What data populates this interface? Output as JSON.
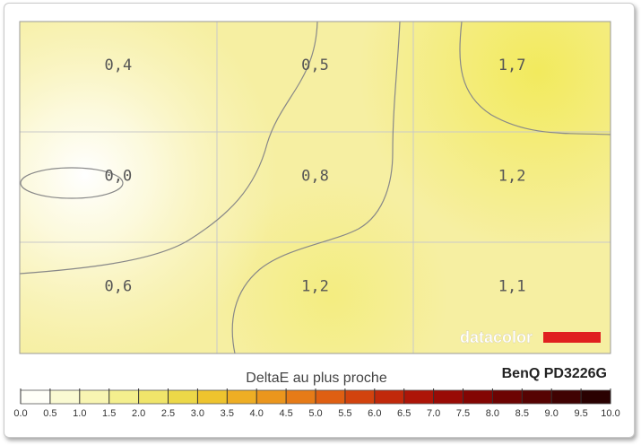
{
  "chart_data": {
    "type": "heatmap",
    "rows": 3,
    "cols": 3,
    "cell_values": [
      [
        "0,4",
        "0,5",
        "1,7"
      ],
      [
        "0,0",
        "0,8",
        "1,2"
      ],
      [
        "0,6",
        "1,2",
        "1,1"
      ]
    ],
    "values": [
      [
        0.4,
        0.5,
        1.7
      ],
      [
        0.0,
        0.8,
        1.2
      ],
      [
        0.6,
        1.2,
        1.1
      ]
    ],
    "colorbar": {
      "label": "DeltaE au plus proche",
      "range": [
        0.0,
        10.0
      ],
      "ticks": [
        "0.0",
        "0.5",
        "1.0",
        "1.5",
        "2.0",
        "2.5",
        "3.0",
        "3.5",
        "4.0",
        "4.5",
        "5.0",
        "5.5",
        "6.0",
        "6.5",
        "7.0",
        "7.5",
        "8.0",
        "8.5",
        "9.0",
        "9.5",
        "10.0"
      ],
      "colors": [
        "#fffff8",
        "#fafad2",
        "#f8f5b2",
        "#f4ef8e",
        "#f0e56a",
        "#ecd848",
        "#eec42e",
        "#eeae24",
        "#eb961d",
        "#e67b17",
        "#df5f12",
        "#d2430e",
        "#c1290b",
        "#ad1508",
        "#990b06",
        "#830603",
        "#6d0402",
        "#560302",
        "#400202",
        "#2a0101"
      ]
    },
    "monitor": "BenQ PD3226G",
    "brand": "datacolor",
    "grid": true,
    "accent_color": "#e02020"
  }
}
